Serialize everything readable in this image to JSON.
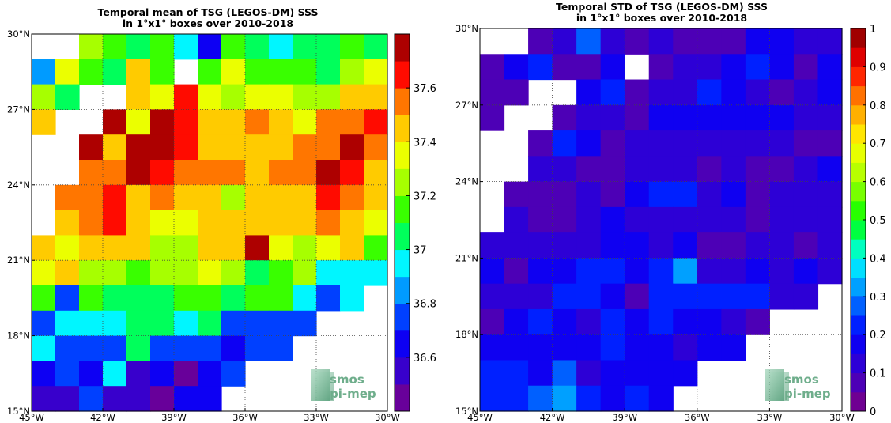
{
  "chart_data": [
    {
      "type": "heatmap",
      "title_lines": [
        "Temporal mean of TSG (LEGOS-DM) SSS",
        "in 1°x1° boxes over 2010-2018"
      ],
      "x_ticks": [
        {
          "value": -45,
          "label": "45°W"
        },
        {
          "value": -42,
          "label": "42°W"
        },
        {
          "value": -39,
          "label": "39°W"
        },
        {
          "value": -36,
          "label": "36°W"
        },
        {
          "value": -33,
          "label": "33°W"
        },
        {
          "value": -30,
          "label": "30°W"
        }
      ],
      "y_ticks": [
        {
          "value": 15,
          "label": "15°N"
        },
        {
          "value": 18,
          "label": "18°N"
        },
        {
          "value": 21,
          "label": "21°N"
        },
        {
          "value": 24,
          "label": "24°N"
        },
        {
          "value": 27,
          "label": "27°N"
        },
        {
          "value": 30,
          "label": "30°N"
        }
      ],
      "xlim": [
        -45,
        -30
      ],
      "ylim": [
        15,
        30
      ],
      "grid": true,
      "colorbar": {
        "range": [
          36.4,
          37.8
        ],
        "ticks": [
          {
            "value": 36.6,
            "label": "36.6"
          },
          {
            "value": 36.8,
            "label": "36.8"
          },
          {
            "value": 37.0,
            "label": "37"
          },
          {
            "value": 37.2,
            "label": "37.2"
          },
          {
            "value": 37.4,
            "label": "37.4"
          },
          {
            "value": 37.6,
            "label": "37.6"
          }
        ]
      },
      "logo": {
        "line1": "smos",
        "line2": "pi-mep"
      },
      "rows_note": "values[0] is the 29-30°N row, values[14] is the 15-16°N row; each row lists 45°W to 30°W in 1° steps",
      "values": [
        [
          null,
          null,
          37.2,
          37.15,
          37.05,
          37.15,
          36.9,
          36.65,
          37.15,
          37.05,
          36.95,
          37.0,
          37.05,
          37.1,
          37.05
        ],
        [
          36.85,
          37.35,
          37.15,
          37.05,
          37.45,
          37.15,
          null,
          37.15,
          37.35,
          37.15,
          37.15,
          37.15,
          37.05,
          37.25,
          37.35
        ],
        [
          37.3,
          37.05,
          null,
          null,
          37.45,
          37.35,
          37.65,
          37.35,
          37.25,
          37.35,
          37.35,
          37.25,
          37.3,
          37.4,
          37.4
        ],
        [
          37.4,
          null,
          null,
          37.7,
          37.35,
          37.7,
          37.6,
          37.45,
          37.45,
          37.5,
          37.45,
          37.35,
          37.5,
          37.55,
          37.6
        ],
        [
          null,
          null,
          37.7,
          37.45,
          37.7,
          37.8,
          37.6,
          37.45,
          37.45,
          37.4,
          37.45,
          37.55,
          37.55,
          37.7,
          37.55
        ],
        [
          null,
          null,
          37.55,
          37.55,
          37.7,
          37.65,
          37.55,
          37.5,
          37.5,
          37.4,
          37.5,
          37.55,
          37.7,
          37.6,
          37.4
        ],
        [
          null,
          37.55,
          37.55,
          37.6,
          37.45,
          37.55,
          37.45,
          37.45,
          37.3,
          37.45,
          37.45,
          37.45,
          37.6,
          37.5,
          37.45
        ],
        [
          null,
          37.4,
          37.5,
          37.6,
          37.45,
          37.35,
          37.35,
          37.4,
          37.45,
          37.45,
          37.4,
          37.4,
          37.5,
          37.4,
          37.35
        ],
        [
          37.45,
          37.35,
          37.4,
          37.4,
          37.45,
          37.3,
          37.3,
          37.4,
          37.4,
          37.8,
          37.35,
          37.3,
          37.35,
          37.4,
          37.1
        ],
        [
          37.35,
          37.4,
          37.3,
          37.25,
          37.15,
          37.3,
          37.25,
          37.35,
          37.25,
          37.05,
          37.15,
          37.25,
          36.9,
          36.9,
          36.9
        ],
        [
          37.1,
          36.8,
          37.15,
          37.0,
          37.05,
          37.05,
          37.1,
          37.1,
          37.0,
          37.1,
          37.1,
          36.9,
          36.8,
          36.9,
          null
        ],
        [
          36.8,
          36.9,
          36.9,
          36.9,
          37.05,
          37.05,
          36.9,
          37.0,
          36.8,
          36.8,
          36.75,
          36.8,
          null,
          null,
          null
        ],
        [
          36.95,
          36.8,
          36.8,
          36.8,
          37.05,
          36.75,
          36.8,
          36.7,
          36.6,
          36.7,
          36.7,
          null,
          null,
          null,
          null
        ],
        [
          36.65,
          36.75,
          36.6,
          36.9,
          36.55,
          36.6,
          36.45,
          36.65,
          36.75,
          null,
          null,
          null,
          null,
          null,
          null
        ],
        [
          36.55,
          36.55,
          36.75,
          36.5,
          36.5,
          36.4,
          36.6,
          36.6,
          null,
          null,
          null,
          null,
          null,
          null,
          null
        ]
      ]
    },
    {
      "type": "heatmap",
      "title_lines": [
        "Temporal STD of TSG (LEGOS-DM) SSS",
        "in 1°x1° boxes over 2010-2018"
      ],
      "x_ticks": [
        {
          "value": -45,
          "label": "45°W"
        },
        {
          "value": -42,
          "label": "42°W"
        },
        {
          "value": -39,
          "label": "39°W"
        },
        {
          "value": -36,
          "label": "36°W"
        },
        {
          "value": -33,
          "label": "33°W"
        },
        {
          "value": -30,
          "label": "30°W"
        }
      ],
      "y_ticks": [
        {
          "value": 15,
          "label": "15°N"
        },
        {
          "value": 18,
          "label": "18°N"
        },
        {
          "value": 21,
          "label": "21°N"
        },
        {
          "value": 24,
          "label": "24°N"
        },
        {
          "value": 27,
          "label": "27°N"
        },
        {
          "value": 30,
          "label": "30°N"
        }
      ],
      "xlim": [
        -45,
        -30
      ],
      "ylim": [
        15,
        30
      ],
      "grid": true,
      "colorbar": {
        "range": [
          0,
          1
        ],
        "ticks": [
          {
            "value": 0,
            "label": "0"
          },
          {
            "value": 0.1,
            "label": "0.1"
          },
          {
            "value": 0.2,
            "label": "0.2"
          },
          {
            "value": 0.3,
            "label": "0.3"
          },
          {
            "value": 0.4,
            "label": "0.4"
          },
          {
            "value": 0.5,
            "label": "0.5"
          },
          {
            "value": 0.6,
            "label": "0.6"
          },
          {
            "value": 0.7,
            "label": "0.7"
          },
          {
            "value": 0.8,
            "label": "0.8"
          },
          {
            "value": 0.9,
            "label": "0.9"
          },
          {
            "value": 1.0,
            "label": "1"
          }
        ]
      },
      "logo": {
        "line1": "smos",
        "line2": "pi-mep"
      },
      "rows_note": "values[0] is the 29-30°N row, values[14] is the 15-16°N row; each row lists 45°W to 30°W in 1° steps",
      "values": [
        [
          null,
          null,
          0.05,
          0.1,
          0.28,
          0.1,
          0.05,
          0.1,
          0.08,
          0.08,
          0.08,
          0.18,
          0.18,
          0.12,
          0.12
        ],
        [
          0.08,
          0.15,
          0.2,
          0.05,
          0.05,
          0.18,
          null,
          0.08,
          0.1,
          0.1,
          0.15,
          0.22,
          0.18,
          0.05,
          0.15
        ],
        [
          0.08,
          0.08,
          null,
          null,
          0.18,
          0.22,
          0.05,
          0.12,
          0.12,
          0.22,
          0.18,
          0.12,
          0.08,
          0.12,
          0.18
        ],
        [
          0.05,
          null,
          null,
          0.05,
          0.1,
          0.1,
          0.05,
          0.15,
          0.18,
          0.18,
          0.18,
          0.18,
          0.15,
          0.12,
          0.1
        ],
        [
          null,
          null,
          0.05,
          0.2,
          0.15,
          0.05,
          0.12,
          0.12,
          0.12,
          0.12,
          0.12,
          0.12,
          0.12,
          0.05,
          0.05
        ],
        [
          null,
          null,
          0.1,
          0.12,
          0.05,
          0.05,
          0.1,
          0.12,
          0.12,
          0.05,
          0.1,
          0.08,
          0.05,
          0.12,
          0.18
        ],
        [
          null,
          0.05,
          0.05,
          0.05,
          0.12,
          0.08,
          0.18,
          0.2,
          0.2,
          0.12,
          0.15,
          0.05,
          0.1,
          0.12,
          0.12
        ],
        [
          null,
          0.12,
          0.08,
          0.05,
          0.1,
          0.15,
          0.12,
          0.12,
          0.12,
          0.12,
          0.1,
          0.05,
          0.12,
          0.12,
          0.12
        ],
        [
          0.12,
          0.12,
          0.12,
          0.1,
          0.12,
          0.15,
          0.15,
          0.12,
          0.15,
          0.05,
          0.08,
          0.12,
          0.1,
          0.08,
          0.1
        ],
        [
          0.18,
          0.05,
          0.18,
          0.18,
          0.2,
          0.2,
          0.18,
          0.2,
          0.32,
          0.12,
          0.12,
          0.15,
          0.12,
          0.15,
          0.12
        ],
        [
          0.1,
          0.12,
          0.1,
          0.2,
          0.2,
          0.15,
          0.05,
          0.2,
          0.2,
          0.2,
          0.22,
          0.22,
          0.12,
          0.12,
          null
        ],
        [
          0.05,
          0.15,
          0.2,
          0.18,
          0.12,
          0.2,
          0.18,
          0.2,
          0.18,
          0.15,
          0.12,
          0.05,
          null,
          null,
          null
        ],
        [
          0.18,
          0.18,
          0.18,
          0.18,
          0.15,
          0.2,
          0.15,
          0.18,
          0.1,
          0.15,
          0.15,
          null,
          null,
          null,
          null
        ],
        [
          0.22,
          0.22,
          0.18,
          0.28,
          0.1,
          0.18,
          0.18,
          0.18,
          0.18,
          null,
          null,
          null,
          null,
          null,
          null
        ],
        [
          0.22,
          0.22,
          0.28,
          0.32,
          0.2,
          0.18,
          0.2,
          0.18,
          null,
          null,
          null,
          null,
          null,
          null,
          null
        ]
      ]
    }
  ]
}
